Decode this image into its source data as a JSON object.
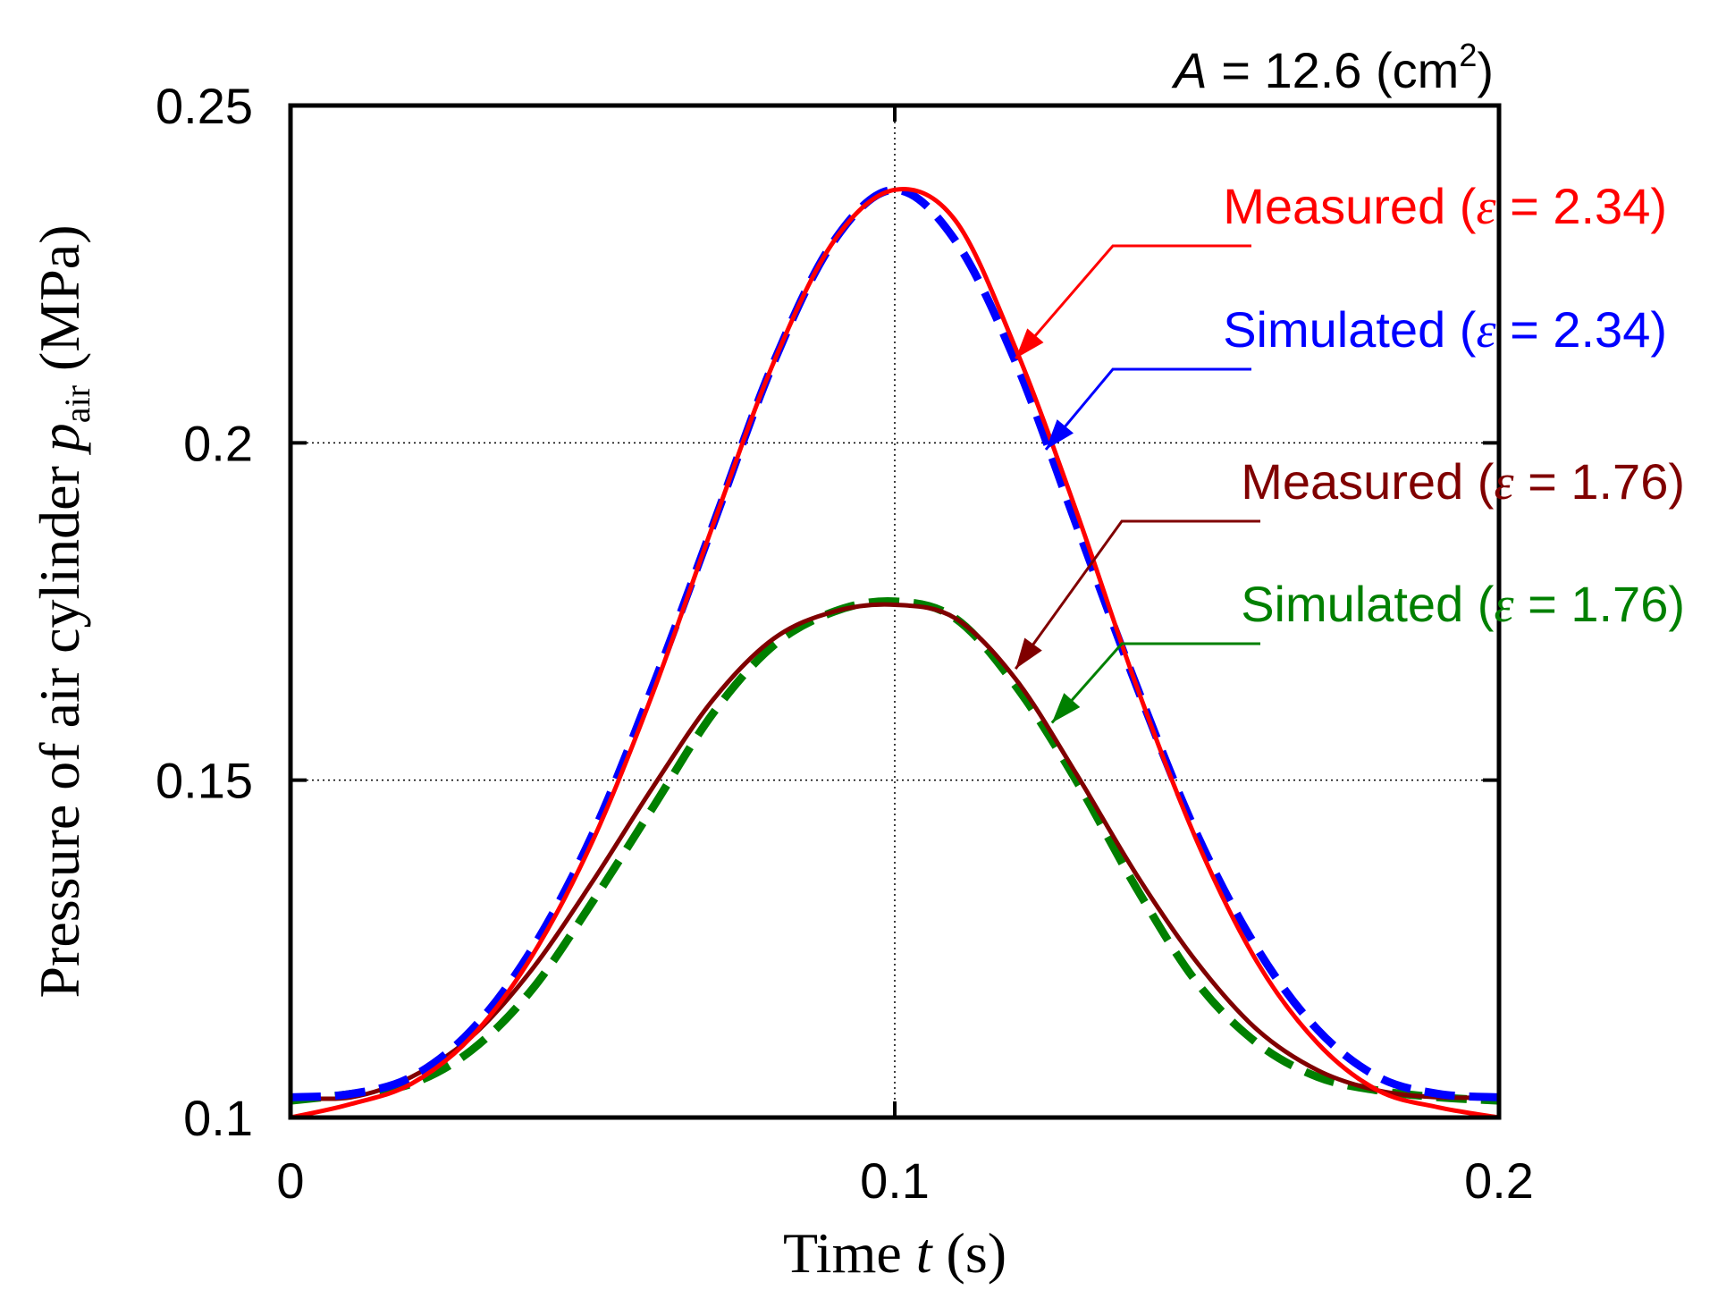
{
  "chart_data": {
    "type": "line",
    "title_parts": {
      "var": "A",
      "eq": " = 12.6 (cm",
      "sup": "2",
      "close": ")"
    },
    "xlabel_parts": {
      "pre": "Time ",
      "var": "t",
      "post": " (s)"
    },
    "ylabel_parts": {
      "pre": "Pressure of air cylinder ",
      "var": "p",
      "sub": "air",
      "post": " (MPa)"
    },
    "xlim": [
      0,
      0.2
    ],
    "ylim": [
      0.1,
      0.25
    ],
    "xticks": [
      0,
      0.1,
      0.2
    ],
    "xtick_labels": [
      "0",
      "0.1",
      "0.2"
    ],
    "yticks": [
      0.1,
      0.15,
      0.2,
      0.25
    ],
    "ytick_labels": [
      "0.1",
      "0.15",
      "0.2",
      "0.25"
    ],
    "grid": true,
    "series": [
      {
        "name": "Measured",
        "eps": "2.34",
        "color": "#ff0000",
        "style": "solid",
        "x": [
          0,
          0.01,
          0.02,
          0.03,
          0.04,
          0.05,
          0.06,
          0.07,
          0.08,
          0.09,
          0.1,
          0.11,
          0.12,
          0.13,
          0.14,
          0.15,
          0.16,
          0.17,
          0.18,
          0.19,
          0.2
        ],
        "y": [
          0.1,
          0.102,
          0.105,
          0.112,
          0.124,
          0.141,
          0.163,
          0.188,
          0.212,
          0.23,
          0.2375,
          0.233,
          0.214,
          0.19,
          0.164,
          0.141,
          0.123,
          0.111,
          0.104,
          0.1015,
          0.1
        ]
      },
      {
        "name": "Simulated",
        "eps": "2.34",
        "color": "#0000ff",
        "style": "dashed",
        "x": [
          0,
          0.01,
          0.02,
          0.03,
          0.04,
          0.05,
          0.06,
          0.07,
          0.08,
          0.09,
          0.1,
          0.11,
          0.12,
          0.13,
          0.14,
          0.15,
          0.16,
          0.17,
          0.18,
          0.19,
          0.2
        ],
        "y": [
          0.103,
          0.1035,
          0.106,
          0.113,
          0.125,
          0.142,
          0.164,
          0.188,
          0.212,
          0.23,
          0.2375,
          0.23,
          0.212,
          0.188,
          0.164,
          0.142,
          0.125,
          0.113,
          0.106,
          0.1035,
          0.103
        ]
      },
      {
        "name": "Measured",
        "eps": "1.76",
        "color": "#800000",
        "style": "solid",
        "x": [
          0,
          0.01,
          0.02,
          0.03,
          0.04,
          0.05,
          0.06,
          0.07,
          0.08,
          0.09,
          0.1,
          0.11,
          0.12,
          0.13,
          0.14,
          0.15,
          0.16,
          0.17,
          0.18,
          0.19,
          0.2
        ],
        "y": [
          0.103,
          0.103,
          0.106,
          0.112,
          0.122,
          0.135,
          0.149,
          0.162,
          0.171,
          0.175,
          0.176,
          0.174,
          0.165,
          0.151,
          0.136,
          0.123,
          0.113,
          0.107,
          0.104,
          0.103,
          0.103
        ]
      },
      {
        "name": "Simulated",
        "eps": "1.76",
        "color": "#008000",
        "style": "dashed",
        "x": [
          0,
          0.01,
          0.02,
          0.03,
          0.04,
          0.05,
          0.06,
          0.07,
          0.08,
          0.09,
          0.1,
          0.11,
          0.12,
          0.13,
          0.14,
          0.15,
          0.16,
          0.17,
          0.18,
          0.19,
          0.2
        ],
        "y": [
          0.1025,
          0.1035,
          0.105,
          0.11,
          0.119,
          0.132,
          0.146,
          0.16,
          0.17,
          0.175,
          0.1765,
          0.174,
          0.164,
          0.15,
          0.134,
          0.12,
          0.111,
          0.106,
          0.104,
          0.103,
          0.1025
        ]
      }
    ],
    "annotations": [
      {
        "series": 0,
        "point": [
          0.12,
          0.2125
        ]
      },
      {
        "series": 1,
        "point": [
          0.125,
          0.199
        ]
      },
      {
        "series": 2,
        "point": [
          0.12,
          0.1665
        ]
      },
      {
        "series": 3,
        "point": [
          0.126,
          0.1585
        ]
      }
    ]
  }
}
